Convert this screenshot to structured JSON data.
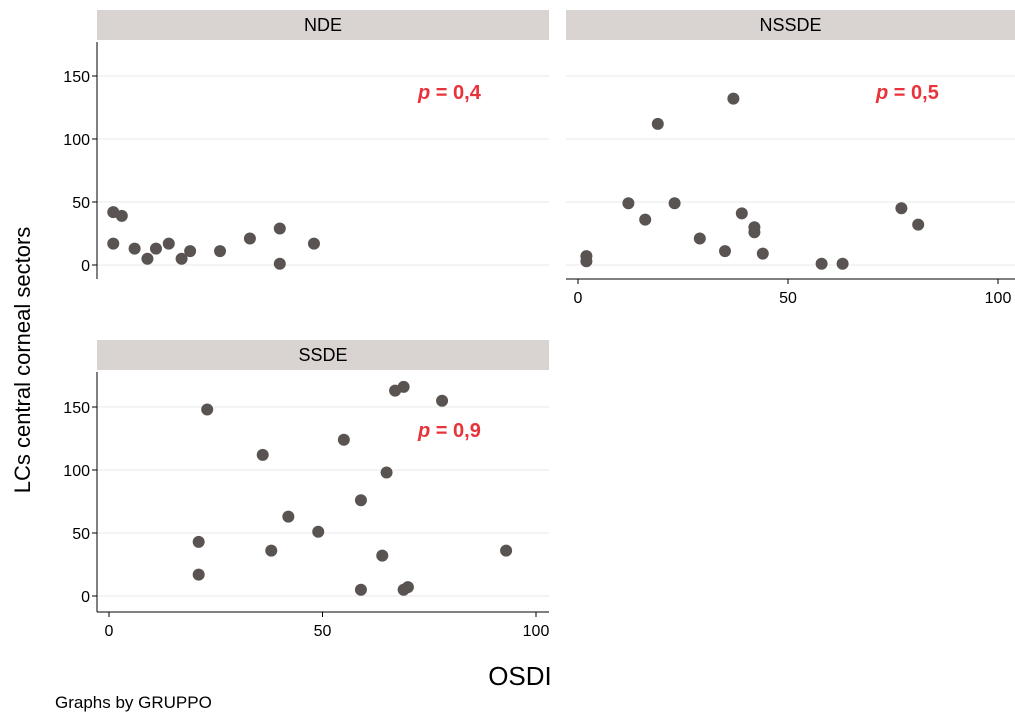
{
  "chart_data": {
    "type": "scatter",
    "xlabel": "OSDI",
    "ylabel": "LCs central corneal sectors",
    "note": "Graphs by GRUPPO",
    "xlim": [
      0,
      100
    ],
    "ylim": [
      0,
      170
    ],
    "xticks": [
      "0",
      "50",
      "100"
    ],
    "yticks": [
      "0",
      "50",
      "100",
      "150"
    ],
    "point_color": "#595451",
    "pvalue_color": "#e8333a",
    "panels": [
      {
        "name": "NDE",
        "p_label": "p",
        "p_eq": "=",
        "p_value": "0,4",
        "points": [
          [
            1,
            42
          ],
          [
            3,
            39
          ],
          [
            1,
            17
          ],
          [
            6,
            13
          ],
          [
            9,
            5
          ],
          [
            11,
            13
          ],
          [
            14,
            17
          ],
          [
            17,
            5
          ],
          [
            19,
            11
          ],
          [
            26,
            11
          ],
          [
            33,
            21
          ],
          [
            40,
            29
          ],
          [
            40,
            1
          ],
          [
            48,
            17
          ]
        ]
      },
      {
        "name": "NSSDE",
        "p_label": "p",
        "p_eq": "=",
        "p_value": "0,5",
        "points": [
          [
            2,
            7
          ],
          [
            2,
            3
          ],
          [
            12,
            49
          ],
          [
            16,
            36
          ],
          [
            19,
            112
          ],
          [
            23,
            49
          ],
          [
            29,
            21
          ],
          [
            35,
            11
          ],
          [
            37,
            132
          ],
          [
            39,
            41
          ],
          [
            42,
            30
          ],
          [
            42,
            26
          ],
          [
            44,
            9
          ],
          [
            58,
            1
          ],
          [
            63,
            1
          ],
          [
            77,
            45
          ],
          [
            81,
            32
          ]
        ]
      },
      {
        "name": "SSDE",
        "p_label": "p",
        "p_eq": "=",
        "p_value": "0,9",
        "points": [
          [
            21,
            43
          ],
          [
            21,
            17
          ],
          [
            23,
            148
          ],
          [
            36,
            112
          ],
          [
            38,
            36
          ],
          [
            42,
            63
          ],
          [
            49,
            51
          ],
          [
            55,
            124
          ],
          [
            59,
            76
          ],
          [
            59,
            5
          ],
          [
            64,
            32
          ],
          [
            65,
            98
          ],
          [
            67,
            163
          ],
          [
            69,
            166
          ],
          [
            69,
            5
          ],
          [
            70,
            7
          ],
          [
            78,
            155
          ],
          [
            93,
            36
          ]
        ]
      }
    ]
  }
}
